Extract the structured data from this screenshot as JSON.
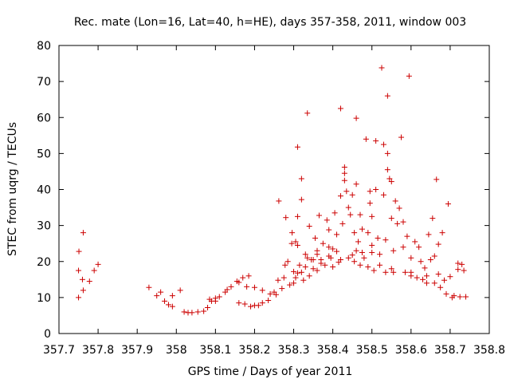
{
  "chart_data": {
    "type": "scatter",
    "title": "Rec. mate (Lon=16, Lat=40, h=HE), days 357-358, 2011, window 003",
    "xlabel": "GPS time / Days of year 2011",
    "ylabel": "STEC from uqrg / TECUs",
    "xlim": [
      357.7,
      358.8
    ],
    "ylim": [
      0,
      80
    ],
    "xticks": [
      "357.7",
      "357.8",
      "357.9",
      "358",
      "358.1",
      "358.2",
      "358.3",
      "358.4",
      "358.5",
      "358.6",
      "358.7",
      "358.8"
    ],
    "yticks": [
      "0",
      "10",
      "20",
      "30",
      "40",
      "50",
      "60",
      "70",
      "80"
    ],
    "grid": false,
    "marker": "plus",
    "marker_color": "#cc0000",
    "series": [
      {
        "points": [
          [
            357.75,
            10
          ],
          [
            357.75,
            17.5
          ],
          [
            357.751,
            22.8
          ],
          [
            357.76,
            15
          ],
          [
            357.762,
            28
          ],
          [
            357.762,
            12
          ],
          [
            357.778,
            14.5
          ],
          [
            357.79,
            17.5
          ],
          [
            357.8,
            19.2
          ],
          [
            357.93,
            12.8
          ],
          [
            357.95,
            10.5
          ],
          [
            357.96,
            11.5
          ],
          [
            357.97,
            9
          ],
          [
            357.98,
            8
          ],
          [
            357.99,
            10.5
          ],
          [
            357.99,
            7.5
          ],
          [
            358.01,
            12
          ],
          [
            358.02,
            6
          ],
          [
            358.03,
            5.8
          ],
          [
            358.04,
            5.8
          ],
          [
            358.055,
            6
          ],
          [
            358.07,
            6.2
          ],
          [
            358.08,
            7.2
          ],
          [
            358.085,
            9.5
          ],
          [
            358.09,
            9
          ],
          [
            358.1,
            9
          ],
          [
            358.1,
            9.8
          ],
          [
            358.11,
            10.2
          ],
          [
            358.125,
            11.5
          ],
          [
            358.13,
            12.2
          ],
          [
            358.14,
            13
          ],
          [
            358.155,
            14.5
          ],
          [
            358.16,
            14.2
          ],
          [
            358.17,
            15.5
          ],
          [
            358.18,
            13
          ],
          [
            358.185,
            16
          ],
          [
            358.16,
            8.5
          ],
          [
            358.175,
            8.2
          ],
          [
            358.19,
            7.5
          ],
          [
            358.2,
            12.8
          ],
          [
            358.2,
            7.8
          ],
          [
            358.21,
            7.8
          ],
          [
            358.22,
            12
          ],
          [
            358.22,
            8.5
          ],
          [
            358.235,
            9.2
          ],
          [
            358.24,
            11
          ],
          [
            358.25,
            11.5
          ],
          [
            358.255,
            10.8
          ],
          [
            358.26,
            14.8
          ],
          [
            358.262,
            36.8
          ],
          [
            358.27,
            12.5
          ],
          [
            358.275,
            15.5
          ],
          [
            358.278,
            19
          ],
          [
            358.28,
            32.2
          ],
          [
            358.285,
            20
          ],
          [
            358.29,
            13.5
          ],
          [
            358.295,
            25
          ],
          [
            358.296,
            28
          ],
          [
            358.3,
            14
          ],
          [
            358.305,
            15.5
          ],
          [
            358.305,
            25.5
          ],
          [
            358.31,
            51.8
          ],
          [
            358.31,
            32.5
          ],
          [
            358.31,
            24.5
          ],
          [
            358.315,
            19
          ],
          [
            358.32,
            43
          ],
          [
            358.32,
            37.2
          ],
          [
            358.325,
            14.8
          ],
          [
            358.33,
            22
          ],
          [
            358.335,
            21
          ],
          [
            358.335,
            61.2
          ],
          [
            358.34,
            29.8
          ],
          [
            358.34,
            16
          ],
          [
            358.345,
            20.5
          ],
          [
            358.35,
            18
          ],
          [
            358.355,
            26.5
          ],
          [
            358.36,
            23
          ],
          [
            358.36,
            17.5
          ],
          [
            358.365,
            32.8
          ],
          [
            358.37,
            20.5
          ],
          [
            358.375,
            25
          ],
          [
            358.38,
            19
          ],
          [
            358.385,
            31.5
          ],
          [
            358.39,
            28.8
          ],
          [
            358.39,
            24
          ],
          [
            358.395,
            21
          ],
          [
            358.4,
            18.5
          ],
          [
            358.405,
            33.5
          ],
          [
            358.41,
            27.5
          ],
          [
            358.41,
            22.8
          ],
          [
            358.415,
            19.8
          ],
          [
            358.42,
            38.2
          ],
          [
            358.42,
            62.5
          ],
          [
            358.425,
            30.5
          ],
          [
            358.43,
            46.2
          ],
          [
            358.43,
            44.5
          ],
          [
            358.43,
            42.5
          ],
          [
            358.435,
            39.5
          ],
          [
            358.44,
            35
          ],
          [
            358.44,
            21
          ],
          [
            358.445,
            33
          ],
          [
            358.45,
            38.5
          ],
          [
            358.455,
            28
          ],
          [
            358.455,
            20
          ],
          [
            358.46,
            59.8
          ],
          [
            358.46,
            41.5
          ],
          [
            358.465,
            25.5
          ],
          [
            358.47,
            33
          ],
          [
            358.475,
            29
          ],
          [
            358.475,
            22.5
          ],
          [
            358.48,
            21
          ],
          [
            358.485,
            54
          ],
          [
            358.49,
            28
          ],
          [
            358.49,
            18.5
          ],
          [
            358.495,
            39.5
          ],
          [
            358.495,
            36.2
          ],
          [
            358.5,
            32.5
          ],
          [
            358.5,
            24.5
          ],
          [
            358.505,
            17.5
          ],
          [
            358.51,
            53.5
          ],
          [
            358.51,
            40
          ],
          [
            358.515,
            26.5
          ],
          [
            358.52,
            22
          ],
          [
            358.525,
            73.8
          ],
          [
            358.53,
            52.5
          ],
          [
            358.53,
            38.5
          ],
          [
            358.535,
            26
          ],
          [
            358.535,
            17
          ],
          [
            358.54,
            66
          ],
          [
            358.54,
            50
          ],
          [
            358.54,
            45.5
          ],
          [
            358.545,
            43
          ],
          [
            358.55,
            42.2
          ],
          [
            358.55,
            32
          ],
          [
            358.555,
            23
          ],
          [
            358.555,
            17
          ],
          [
            358.56,
            36.8
          ],
          [
            358.565,
            30.5
          ],
          [
            358.57,
            34.8
          ],
          [
            358.575,
            54.5
          ],
          [
            358.58,
            31
          ],
          [
            358.58,
            24
          ],
          [
            358.585,
            17
          ],
          [
            358.59,
            27
          ],
          [
            358.595,
            71.5
          ],
          [
            358.6,
            21
          ],
          [
            358.6,
            16
          ],
          [
            358.61,
            25.5
          ],
          [
            358.615,
            15.5
          ],
          [
            358.62,
            24
          ],
          [
            358.625,
            20
          ],
          [
            358.63,
            15
          ],
          [
            358.635,
            18.2
          ],
          [
            358.64,
            16
          ],
          [
            358.645,
            27.5
          ],
          [
            358.65,
            20.5
          ],
          [
            358.655,
            32
          ],
          [
            358.66,
            21.5
          ],
          [
            358.66,
            14
          ],
          [
            358.665,
            42.8
          ],
          [
            358.67,
            24.8
          ],
          [
            358.67,
            16.5
          ],
          [
            358.675,
            12.8
          ],
          [
            358.68,
            28
          ],
          [
            358.685,
            14.8
          ],
          [
            358.69,
            11
          ],
          [
            358.695,
            36
          ],
          [
            358.7,
            15.8
          ],
          [
            358.705,
            10
          ],
          [
            358.71,
            10.5
          ],
          [
            358.72,
            19.5
          ],
          [
            358.72,
            17.8
          ],
          [
            358.725,
            10.2
          ],
          [
            358.73,
            19.2
          ],
          [
            358.735,
            17.5
          ],
          [
            358.74,
            10.2
          ],
          [
            358.3,
            17.2
          ],
          [
            358.31,
            16.8
          ],
          [
            358.32,
            17
          ],
          [
            358.33,
            18.5
          ],
          [
            358.35,
            20.5
          ],
          [
            358.37,
            19.5
          ],
          [
            358.39,
            21.5
          ],
          [
            358.42,
            20.5
          ],
          [
            358.45,
            21.8
          ],
          [
            358.47,
            19
          ],
          [
            358.52,
            19
          ],
          [
            358.55,
            18
          ],
          [
            358.6,
            17
          ],
          [
            358.64,
            14
          ],
          [
            358.36,
            22
          ],
          [
            358.4,
            23.5
          ],
          [
            358.46,
            23
          ],
          [
            358.5,
            22.5
          ]
        ]
      }
    ]
  }
}
